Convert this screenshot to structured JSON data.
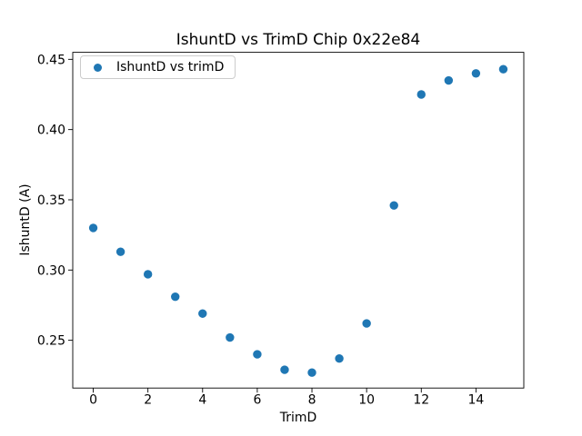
{
  "colors": {
    "marker": "#1f77b4",
    "axis": "#000000",
    "legend_border": "#cccccc",
    "background": "#ffffff"
  },
  "chart_data": {
    "type": "scatter",
    "title": "IshuntD vs TrimD Chip 0x22e84",
    "xlabel": "TrimD",
    "ylabel": "IshuntD (A)",
    "legend": {
      "position": "upper left",
      "entries": [
        {
          "label": "IshuntD vs trimD",
          "marker": "dot",
          "color": "#1f77b4"
        }
      ]
    },
    "series": [
      {
        "name": "IshuntD vs trimD",
        "color": "#1f77b4",
        "x": [
          0,
          1,
          2,
          3,
          4,
          5,
          6,
          7,
          8,
          9,
          10,
          11,
          12,
          13,
          14,
          15
        ],
        "y": [
          0.33,
          0.313,
          0.297,
          0.281,
          0.269,
          0.252,
          0.24,
          0.229,
          0.227,
          0.237,
          0.262,
          0.346,
          0.425,
          0.435,
          0.44,
          0.443
        ]
      }
    ],
    "xlim": [
      -0.75,
      15.75
    ],
    "ylim": [
      0.216,
      0.455
    ],
    "xticks": [
      0,
      2,
      4,
      6,
      8,
      10,
      12,
      14
    ],
    "xtick_labels": [
      "0",
      "2",
      "4",
      "6",
      "8",
      "10",
      "12",
      "14"
    ],
    "yticks": [
      0.25,
      0.3,
      0.35,
      0.4,
      0.45
    ],
    "ytick_labels": [
      "0.25",
      "0.30",
      "0.35",
      "0.40",
      "0.45"
    ],
    "grid": false,
    "marker_radius_px": 4.7
  }
}
